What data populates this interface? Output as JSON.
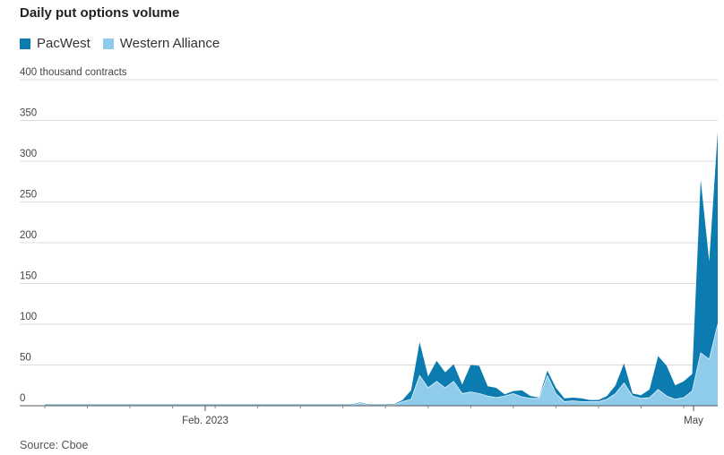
{
  "title": "Daily put options volume",
  "source": "Source: Cboe",
  "colors": {
    "pacwest": "#0c7bb0",
    "western_alliance": "#8fcbeb",
    "grid": "#dcdcdc",
    "axis": "#555555"
  },
  "chart_data": {
    "type": "area",
    "stacked": true,
    "title": "Daily put options volume",
    "ylabel": "thousand contracts",
    "ylim": [
      0,
      400
    ],
    "y_ticks": [
      0,
      50,
      100,
      150,
      200,
      250,
      300,
      350,
      400
    ],
    "y_tick_labels": [
      "0",
      "50",
      "100",
      "150",
      "200",
      "250",
      "300",
      "350",
      "400 thousand contracts"
    ],
    "x_tick_labels": [
      "Feb. 2023",
      "May"
    ],
    "grid": true,
    "legend_position": "top-left",
    "series": [
      {
        "name": "Western Alliance",
        "color": "#8fcbeb",
        "values": [
          0.5,
          0.5,
          0.5,
          0.5,
          0.5,
          0.5,
          0.5,
          0.5,
          0.5,
          0.5,
          0.5,
          0.5,
          0.5,
          0.5,
          0.5,
          0.5,
          0.5,
          0.5,
          0.5,
          0.5,
          0.5,
          0.5,
          0.5,
          0.5,
          0.5,
          0.5,
          0.5,
          0.5,
          0.5,
          0.5,
          0.5,
          0.5,
          0.5,
          0.5,
          0.5,
          0.5,
          0.5,
          3,
          0.5,
          0.5,
          0.5,
          1,
          5,
          8,
          37,
          22,
          30,
          22,
          30,
          15,
          17,
          15,
          12,
          10,
          12,
          15,
          11,
          9,
          9,
          37,
          15,
          5,
          6,
          5,
          5,
          5,
          8,
          15,
          28,
          12,
          9,
          10,
          20,
          12,
          8,
          10,
          18,
          65,
          57,
          100
        ]
      },
      {
        "name": "PacWest",
        "color": "#0c7bb0",
        "values": [
          1,
          1,
          1,
          1,
          1,
          1,
          1,
          1,
          1,
          1,
          1,
          1,
          1,
          1,
          1,
          1,
          1,
          1,
          1,
          1,
          1,
          1,
          1,
          1,
          1,
          1,
          1,
          1,
          1,
          1,
          1,
          1,
          1,
          1,
          1,
          1,
          1,
          1,
          1,
          1,
          1,
          1,
          2,
          11,
          41,
          14,
          25,
          19,
          21,
          11,
          33,
          34,
          12,
          12,
          2,
          3,
          8,
          3,
          1,
          6,
          7,
          4,
          4,
          4,
          2,
          2,
          4,
          10,
          24,
          3,
          4,
          10,
          41,
          37,
          17,
          20,
          21,
          212,
          120,
          236
        ]
      }
    ]
  }
}
